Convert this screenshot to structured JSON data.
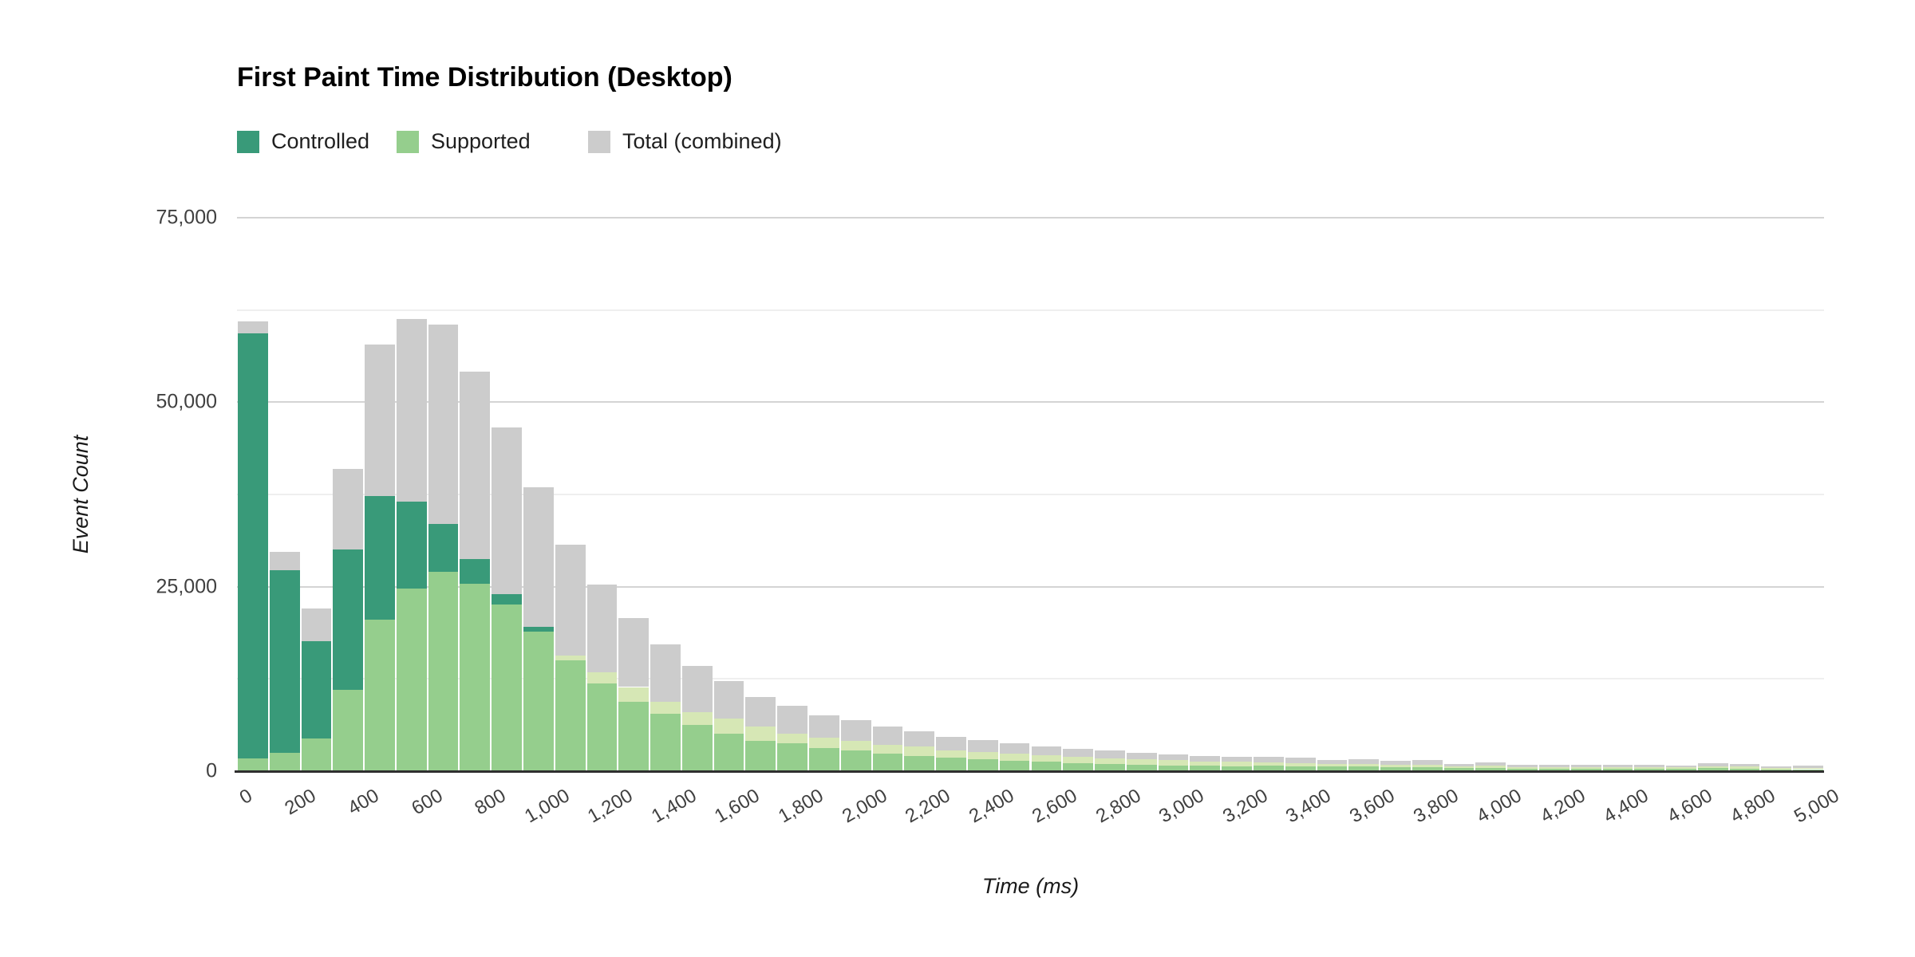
{
  "title": "First Paint Time Distribution (Desktop)",
  "legend": [
    {
      "label": "Controlled",
      "color": "#399a79"
    },
    {
      "label": "Supported",
      "color": "#95ce8d"
    },
    {
      "label": "Total (combined)",
      "color": "#cccccc"
    }
  ],
  "axes": {
    "x_title": "Time (ms)",
    "y_title": "Event Count",
    "y_tick_labels": [
      {
        "value": 0,
        "label": "0"
      },
      {
        "value": 25000,
        "label": "25,000"
      },
      {
        "value": 50000,
        "label": "50,000"
      },
      {
        "value": 75000,
        "label": "75,000"
      }
    ],
    "x_tick_labels": [
      "0",
      "200",
      "400",
      "600",
      "800",
      "1,000",
      "1,200",
      "1,400",
      "1,600",
      "1,800",
      "2,000",
      "2,200",
      "2,400",
      "2,600",
      "2,800",
      "3,000",
      "3,200",
      "3,400",
      "3,600",
      "3,800",
      "4,000",
      "4,200",
      "4,400",
      "4,600",
      "4,800",
      "5,000"
    ]
  },
  "chart_data": {
    "type": "bar",
    "subtype": "overlaid-histogram",
    "title": "First Paint Time Distribution (Desktop)",
    "xlabel": "Time (ms)",
    "ylabel": "Event Count",
    "bin_width_ms": 100,
    "x_range_ms": [
      0,
      5000
    ],
    "ylim": [
      0,
      75000
    ],
    "y_gridline_step": 12500,
    "y_label_step": 25000,
    "bin_starts_ms": [
      0,
      100,
      200,
      300,
      400,
      500,
      600,
      700,
      800,
      900,
      1000,
      1100,
      1200,
      1300,
      1400,
      1500,
      1600,
      1700,
      1800,
      1900,
      2000,
      2100,
      2200,
      2300,
      2400,
      2500,
      2600,
      2700,
      2800,
      2900,
      3000,
      3100,
      3200,
      3300,
      3400,
      3500,
      3600,
      3700,
      3800,
      3900,
      4000,
      4100,
      4200,
      4300,
      4400,
      4500,
      4600,
      4700,
      4800,
      4900
    ],
    "series": [
      {
        "name": "Controlled",
        "color": "#399a79",
        "values": [
          59300,
          27200,
          17600,
          30000,
          37300,
          36500,
          33500,
          28700,
          24000,
          19600,
          15000,
          11900,
          9400,
          7800,
          6300,
          5100,
          4100,
          3800,
          3100,
          2800,
          2400,
          2100,
          1800,
          1600,
          1400,
          1250,
          1100,
          980,
          870,
          800,
          730,
          660,
          750,
          700,
          600,
          650,
          550,
          560,
          380,
          430,
          340,
          320,
          330,
          350,
          320,
          300,
          450,
          350,
          220,
          270
        ]
      },
      {
        "name": "Supported",
        "color": "#95ce8d",
        "values": [
          1700,
          2500,
          4400,
          11000,
          20500,
          24800,
          27000,
          25400,
          22600,
          18900,
          15700,
          13400,
          11400,
          9400,
          8000,
          7100,
          6000,
          5100,
          4500,
          4100,
          3600,
          3300,
          2850,
          2600,
          2380,
          2150,
          1950,
          1780,
          1600,
          1480,
          1350,
          1250,
          1150,
          1100,
          950,
          1000,
          850,
          900,
          620,
          720,
          560,
          500,
          520,
          550,
          500,
          510,
          600,
          600,
          380,
          450
        ]
      },
      {
        "name": "Total (combined)",
        "color": "#cccccc",
        "note": "total = controlled + supported, drawn behind the green series"
      }
    ],
    "overlap_colors": {
      "supported_over_controlled": "#95ce8d",
      "supported_over_total_pale_band": "#d6e7b5"
    },
    "legend_position": "top"
  },
  "style_colors": {
    "grid_major": "#d4d4d4",
    "grid_minor": "#efefef",
    "axis_line": "#2f2f2f",
    "tick_text": "#404040",
    "background": "#ffffff"
  }
}
